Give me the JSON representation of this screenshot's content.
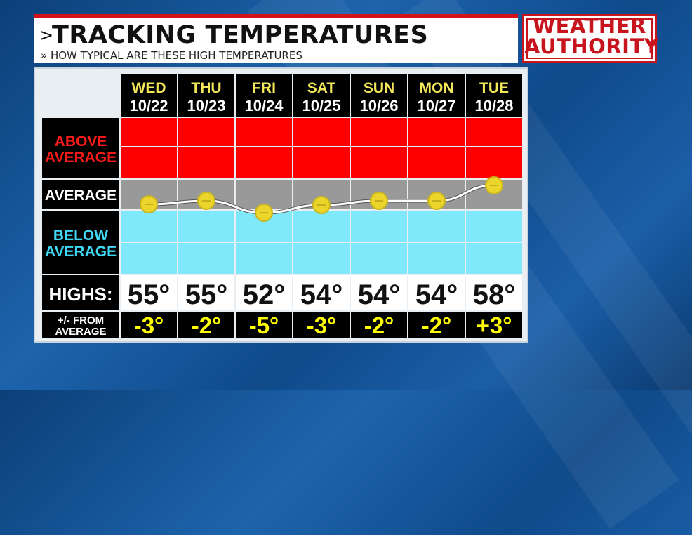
{
  "header": {
    "title": "TRACKING TEMPERATURES",
    "subtitle": "» HOW TYPICAL ARE THESE HIGH TEMPERATURES",
    "caret": ">"
  },
  "logo": {
    "line1": "WEATHER",
    "line2": "AUTHORITY"
  },
  "colors": {
    "above": "#ff0000",
    "average": "#999999",
    "below": "#7fe8fa",
    "highs_value": "#111111",
    "departure_value": "#ffff00",
    "marker": "#ebd52a"
  },
  "chart_data": {
    "type": "line",
    "title": "TRACKING TEMPERATURES",
    "subtitle": "HOW TYPICAL ARE THESE HIGH TEMPERATURES",
    "days": [
      {
        "day": "WED",
        "date": "10/22"
      },
      {
        "day": "THU",
        "date": "10/23"
      },
      {
        "day": "FRI",
        "date": "10/24"
      },
      {
        "day": "SAT",
        "date": "10/25"
      },
      {
        "day": "SUN",
        "date": "10/26"
      },
      {
        "day": "MON",
        "date": "10/27"
      },
      {
        "day": "TUE",
        "date": "10/28"
      }
    ],
    "bands": {
      "above": "ABOVE AVERAGE",
      "average": "AVERAGE",
      "below": "BELOW AVERAGE"
    },
    "highs_label": "HIGHS:",
    "departure_label_1": "+/- FROM",
    "departure_label_2": "AVERAGE",
    "highs": [
      "55°",
      "55°",
      "52°",
      "54°",
      "54°",
      "54°",
      "58°"
    ],
    "departures": [
      "-3°",
      "-2°",
      "-5°",
      "-3°",
      "-2°",
      "-2°",
      "+3°"
    ],
    "departure_values": [
      -3,
      -2,
      -5,
      -3,
      -2,
      -2,
      3
    ]
  }
}
